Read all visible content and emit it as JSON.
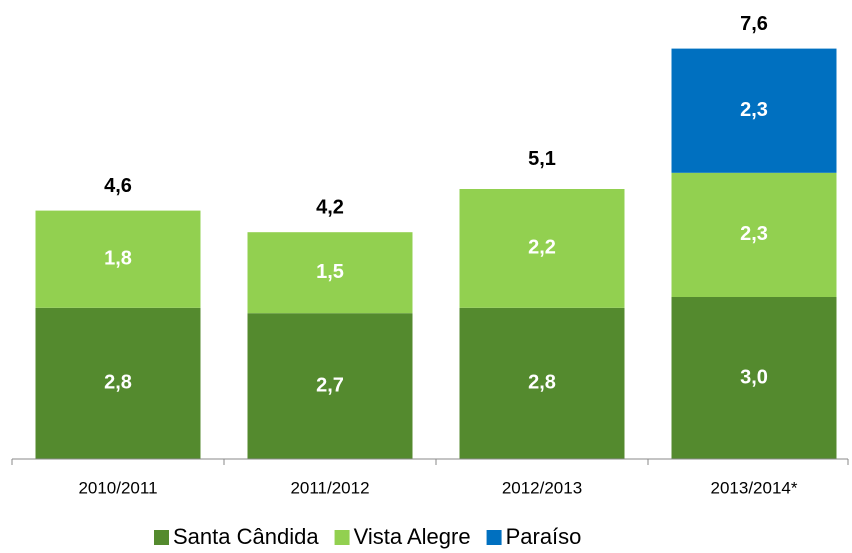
{
  "chart_data": {
    "type": "stacked_bar",
    "categories": [
      "2010/2011",
      "2011/2012",
      "2012/2013",
      "2013/2014*"
    ],
    "series": [
      {
        "name": "Santa Cândida",
        "color": "#548a2e",
        "values": [
          2.8,
          2.7,
          2.8,
          3.0
        ],
        "value_labels": [
          "2,8",
          "2,7",
          "2,8",
          "3,0"
        ]
      },
      {
        "name": "Vista Alegre",
        "color": "#92d050",
        "values": [
          1.8,
          1.5,
          2.2,
          2.3
        ],
        "value_labels": [
          "1,8",
          "1,5",
          "2,2",
          "2,3"
        ]
      },
      {
        "name": "Paraíso",
        "color": "#0070c0",
        "values": [
          null,
          null,
          null,
          2.3
        ],
        "value_labels": [
          null,
          null,
          null,
          "2,3"
        ]
      }
    ],
    "totals": [
      4.6,
      4.2,
      5.1,
      7.6
    ],
    "total_labels": [
      "4,6",
      "4,2",
      "5,1",
      "7,6"
    ],
    "legend": "bottom"
  }
}
